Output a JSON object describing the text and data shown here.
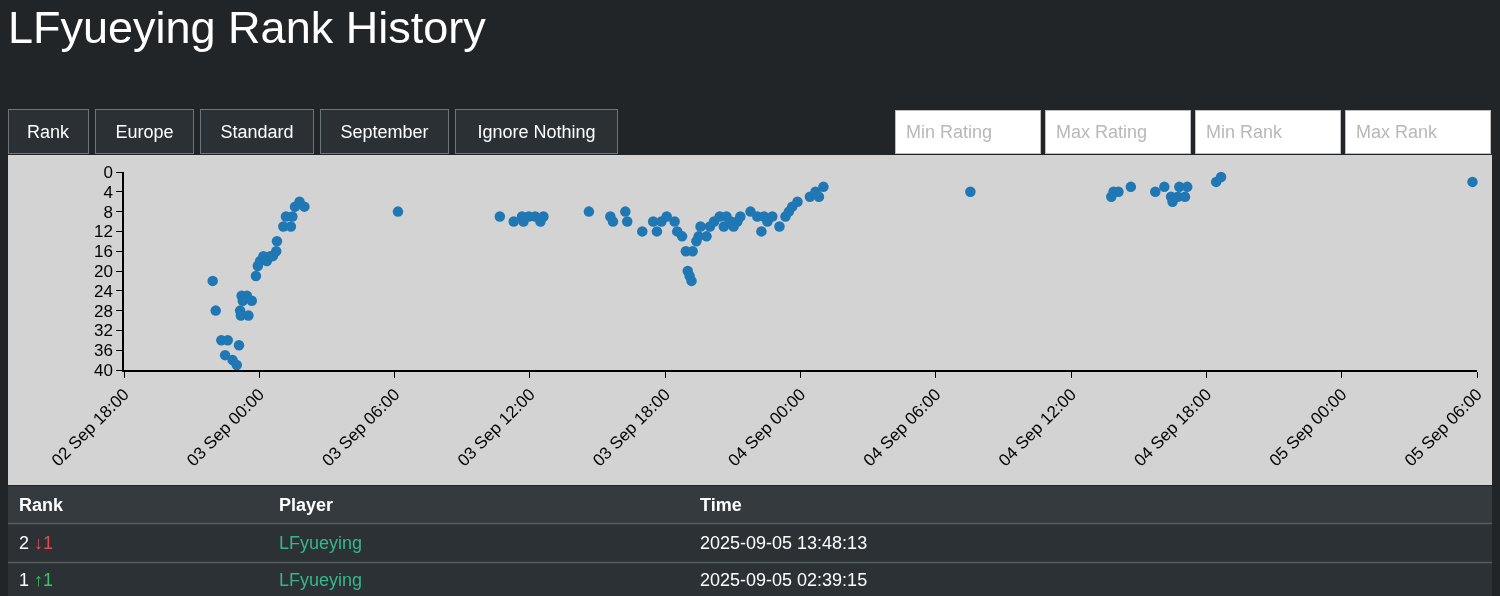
{
  "chart_data": {
    "type": "scatter",
    "title": "LFyueying Rank History",
    "x": [
      "2025-09-02T21:56",
      "2025-09-02T22:04",
      "2025-09-02T22:19",
      "2025-09-02T22:29",
      "2025-09-02T22:36",
      "2025-09-02T22:49",
      "2025-09-02T23:00",
      "2025-09-02T23:06",
      "2025-09-02T23:09",
      "2025-09-02T23:11",
      "2025-09-02T23:13",
      "2025-09-02T23:16",
      "2025-09-02T23:27",
      "2025-09-02T23:31",
      "2025-09-02T23:40",
      "2025-09-02T23:51",
      "2025-09-02T23:56",
      "2025-09-03T00:02",
      "2025-09-03T00:11",
      "2025-09-03T00:20",
      "2025-09-03T00:29",
      "2025-09-03T00:36",
      "2025-09-03T00:45",
      "2025-09-03T00:47",
      "2025-09-03T01:04",
      "2025-09-03T01:11",
      "2025-09-03T01:24",
      "2025-09-03T01:28",
      "2025-09-03T01:35",
      "2025-09-03T01:47",
      "2025-09-03T02:00",
      "2025-09-03T06:09",
      "2025-09-03T10:40",
      "2025-09-03T11:17",
      "2025-09-03T11:39",
      "2025-09-03T11:43",
      "2025-09-03T11:57",
      "2025-09-03T12:14",
      "2025-09-03T12:28",
      "2025-09-03T12:36",
      "2025-09-03T14:37",
      "2025-09-03T15:34",
      "2025-09-03T15:41",
      "2025-09-03T16:14",
      "2025-09-03T16:19",
      "2025-09-03T16:59",
      "2025-09-03T17:28",
      "2025-09-03T17:38",
      "2025-09-03T17:50",
      "2025-09-03T18:04",
      "2025-09-03T18:25",
      "2025-09-03T18:32",
      "2025-09-03T18:45",
      "2025-09-03T18:55",
      "2025-09-03T19:00",
      "2025-09-03T19:05",
      "2025-09-03T19:10",
      "2025-09-03T19:13",
      "2025-09-03T19:23",
      "2025-09-03T19:29",
      "2025-09-03T19:34",
      "2025-09-03T19:50",
      "2025-09-03T19:59",
      "2025-09-03T20:10",
      "2025-09-03T20:25",
      "2025-09-03T20:36",
      "2025-09-03T20:43",
      "2025-09-03T20:54",
      "2025-09-03T21:02",
      "2025-09-03T21:12",
      "2025-09-03T21:20",
      "2025-09-03T21:47",
      "2025-09-03T22:05",
      "2025-09-03T22:16",
      "2025-09-03T22:23",
      "2025-09-03T22:32",
      "2025-09-03T22:45",
      "2025-09-03T23:04",
      "2025-09-03T23:20",
      "2025-09-03T23:29",
      "2025-09-03T23:38",
      "2025-09-03T23:52",
      "2025-09-04T00:25",
      "2025-09-04T00:40",
      "2025-09-04T00:49",
      "2025-09-04T01:01",
      "2025-09-04T07:32",
      "2025-09-04T13:47",
      "2025-09-04T13:53",
      "2025-09-04T14:06",
      "2025-09-04T14:39",
      "2025-09-04T15:44",
      "2025-09-04T16:08",
      "2025-09-04T16:26",
      "2025-09-04T16:30",
      "2025-09-04T16:44",
      "2025-09-04T16:48",
      "2025-09-04T17:03",
      "2025-09-04T17:09",
      "2025-09-04T18:26",
      "2025-09-04T18:39",
      "2025-09-05T05:48"
    ],
    "values": [
      22,
      28,
      34,
      37,
      34,
      38,
      39,
      35,
      28,
      29,
      25,
      26,
      25,
      29,
      26,
      21,
      19,
      18,
      17,
      18,
      17,
      17,
      16,
      14,
      11,
      9,
      11,
      9,
      7,
      6,
      7,
      8,
      9,
      10,
      9,
      10,
      9,
      9,
      10,
      9,
      8,
      9,
      10,
      8,
      10,
      12,
      10,
      12,
      10,
      9,
      10,
      12,
      13,
      16,
      20,
      21,
      22,
      16,
      14,
      13,
      11,
      13,
      11,
      10,
      9,
      11,
      9,
      10,
      11,
      10,
      9,
      8,
      9,
      12,
      9,
      10,
      9,
      11,
      9,
      8,
      7,
      6,
      5,
      4,
      5,
      3,
      4,
      5,
      4,
      4,
      3,
      4,
      3,
      5,
      6,
      5,
      3,
      5,
      3,
      2,
      1,
      2
    ],
    "color": "#1f77b4",
    "marker": "circle",
    "grid": false,
    "xlim": [
      "2025-09-02T18:00",
      "2025-09-05T06:00"
    ],
    "xticks": [
      {
        "value": "2025-09-02T18:00",
        "label": "02 Sep 18:00"
      },
      {
        "value": "2025-09-03T00:00",
        "label": "03 Sep 00:00"
      },
      {
        "value": "2025-09-03T06:00",
        "label": "03 Sep 06:00"
      },
      {
        "value": "2025-09-03T12:00",
        "label": "03 Sep 12:00"
      },
      {
        "value": "2025-09-03T18:00",
        "label": "03 Sep 18:00"
      },
      {
        "value": "2025-09-04T00:00",
        "label": "04 Sep 00:00"
      },
      {
        "value": "2025-09-04T06:00",
        "label": "04 Sep 06:00"
      },
      {
        "value": "2025-09-04T12:00",
        "label": "04 Sep 12:00"
      },
      {
        "value": "2025-09-04T18:00",
        "label": "04 Sep 18:00"
      },
      {
        "value": "2025-09-05T00:00",
        "label": "05 Sep 00:00"
      },
      {
        "value": "2025-09-05T06:00",
        "label": "05 Sep 06:00"
      }
    ],
    "ylim": [
      40,
      0
    ],
    "yticks": [
      0,
      4,
      8,
      12,
      16,
      20,
      24,
      28,
      32,
      36,
      40
    ],
    "annotations": [
      "Rank",
      "Europe",
      "Standard",
      "September",
      "Ignore Nothing",
      "Min Rating",
      "Max Rating",
      "Min Rank",
      "Max Rank",
      "Rank",
      "Player",
      "Time",
      "2 ↓1",
      "LFyueying",
      "2025-09-05 13:48:13",
      "1 ↑1",
      "LFyueying",
      "2025-09-05 02:39:15"
    ]
  }
}
